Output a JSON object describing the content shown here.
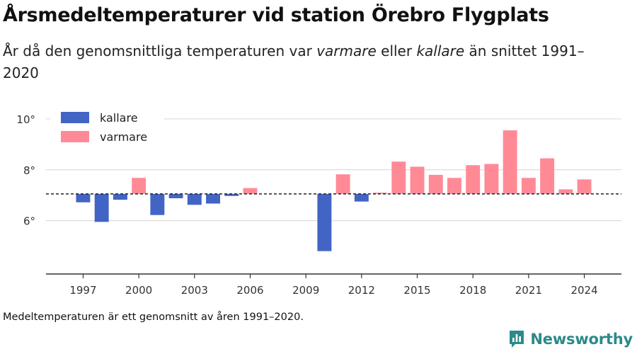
{
  "header": {
    "title": "Årsmedeltemperaturer vid station Örebro Flygplats",
    "subtitle_part1": "År då den genomsnittliga temperaturen var ",
    "subtitle_warm": "varmare",
    "subtitle_part2": " eller ",
    "subtitle_cold": "kallare",
    "subtitle_part3": " än snittet 1991–2020"
  },
  "footnote": "Medeltemperaturen är ett genomsnitt av åren 1991–2020.",
  "brand": {
    "name": "Newsworthy",
    "icon": "newsworthy-logo-icon",
    "color": "#2b8a8a"
  },
  "chart_data": {
    "type": "bar",
    "baseline": 7.05,
    "baseline_style": "dashed",
    "ylim": [
      3.9,
      10.5
    ],
    "y_ticks": [
      6,
      8,
      10
    ],
    "y_tick_labels": [
      "6°",
      "8°",
      "10°"
    ],
    "x_ticks": [
      1997,
      2000,
      2003,
      2006,
      2009,
      2012,
      2015,
      2018,
      2021,
      2024
    ],
    "x_tick_labels": [
      "1997",
      "2000",
      "2003",
      "2006",
      "2009",
      "2012",
      "2015",
      "2018",
      "2021",
      "2024"
    ],
    "xlim": [
      1995,
      2026
    ],
    "grid": true,
    "legend": {
      "position": "top-left",
      "entries": [
        {
          "label": "kallare",
          "color": "#4264c4"
        },
        {
          "label": "varmare",
          "color": "#ff8a96"
        }
      ]
    },
    "colors": {
      "kallare": "#4264c4",
      "varmare": "#ff8a96"
    },
    "data": [
      {
        "year": 1997,
        "value": 6.72
      },
      {
        "year": 1998,
        "value": 5.95
      },
      {
        "year": 1999,
        "value": 6.82
      },
      {
        "year": 2000,
        "value": 7.68
      },
      {
        "year": 2001,
        "value": 6.22
      },
      {
        "year": 2002,
        "value": 6.88
      },
      {
        "year": 2003,
        "value": 6.62
      },
      {
        "year": 2004,
        "value": 6.67
      },
      {
        "year": 2005,
        "value": 6.97
      },
      {
        "year": 2006,
        "value": 7.28
      },
      {
        "year": 2010,
        "value": 4.8
      },
      {
        "year": 2011,
        "value": 7.82
      },
      {
        "year": 2012,
        "value": 6.75
      },
      {
        "year": 2013,
        "value": 7.1
      },
      {
        "year": 2014,
        "value": 8.32
      },
      {
        "year": 2015,
        "value": 8.12
      },
      {
        "year": 2016,
        "value": 7.8
      },
      {
        "year": 2017,
        "value": 7.68
      },
      {
        "year": 2018,
        "value": 8.18
      },
      {
        "year": 2019,
        "value": 8.23
      },
      {
        "year": 2020,
        "value": 9.55
      },
      {
        "year": 2021,
        "value": 7.68
      },
      {
        "year": 2022,
        "value": 8.45
      },
      {
        "year": 2023,
        "value": 7.23
      },
      {
        "year": 2024,
        "value": 7.62
      }
    ]
  }
}
